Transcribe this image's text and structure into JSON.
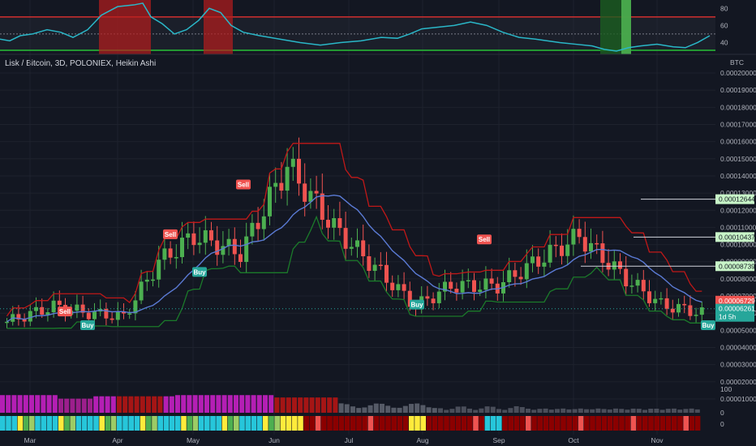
{
  "header": {
    "symbol_line": "Lisk / Bitcoin, 3D, POLONIEX, Heikin Ashi",
    "currency": "BTC"
  },
  "oscillator": {
    "levels": [
      "80",
      "60",
      "40"
    ]
  },
  "price_axis": {
    "ticks": [
      "0.00020000",
      "0.00019000",
      "0.00018000",
      "0.00017000",
      "0.00016000",
      "0.00015000",
      "0.00014000",
      "0.00013000",
      "0.00012000",
      "0.00011000",
      "0.00010000",
      "0.00009000",
      "0.00008000",
      "0.00007000",
      "0.00006000",
      "0.00005000",
      "0.00004000",
      "0.00003000",
      "0.00002000",
      "0.00001000"
    ],
    "drawn_levels": [
      {
        "label": "0.00012644",
        "value": 0.00012644
      },
      {
        "label": "0.00010437",
        "value": 0.00010437
      },
      {
        "label": "0.00008739",
        "value": 8.739e-05
      }
    ],
    "last_price": "0.00006729",
    "close_label": "0.00006261",
    "countdown": "1d 5h"
  },
  "volume_axis": {
    "ticks": [
      "100",
      "0"
    ]
  },
  "strip_axis": {
    "ticks": [
      "0"
    ]
  },
  "time_axis": [
    "Mar",
    "Apr",
    "May",
    "Jun",
    "Jul",
    "Aug",
    "Sep",
    "Oct",
    "Nov"
  ],
  "signals": [
    {
      "label": "Sell",
      "type": "sell"
    },
    {
      "label": "Buy",
      "type": "buy"
    },
    {
      "label": "Sell",
      "type": "sell"
    },
    {
      "label": "Buy",
      "type": "buy"
    },
    {
      "label": "Sell",
      "type": "sell"
    },
    {
      "label": "Buy",
      "type": "buy"
    },
    {
      "label": "Sell",
      "type": "sell"
    },
    {
      "label": "Buy",
      "type": "buy"
    }
  ],
  "colors": {
    "background": "#131722",
    "grid": "#1e222d",
    "up": "#26a69a",
    "candle_up": "#4caf50",
    "candle_down": "#ef5350",
    "ma": "#5b7bd5",
    "stop_sell": "#c01818",
    "stop_buy": "#1b7a2a",
    "osc_line": "#2ab7c8"
  }
}
